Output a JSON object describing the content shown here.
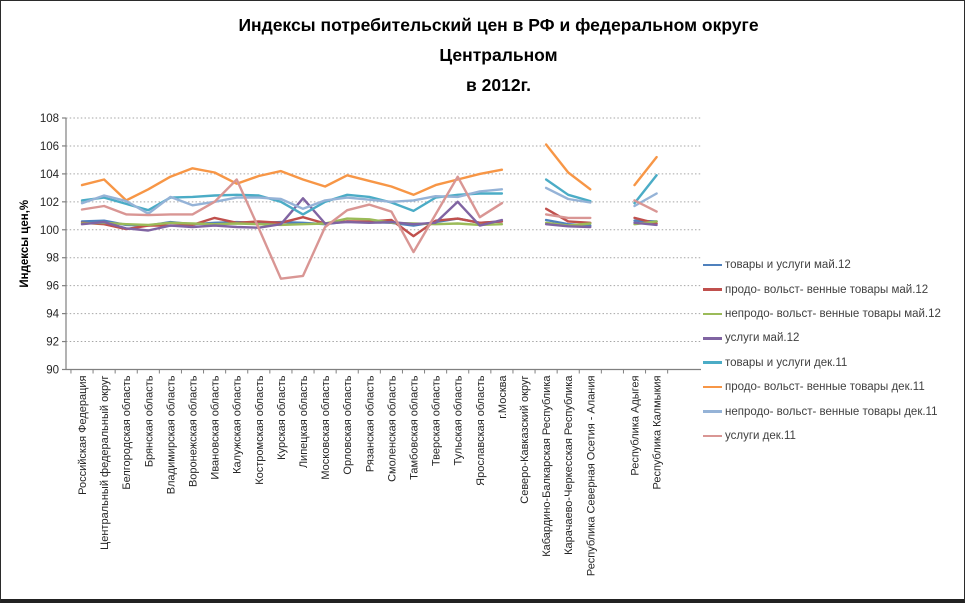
{
  "title": {
    "line1": "Индексы потребительский цен в РФ и федеральном округе",
    "line2": "Центральном",
    "line3": "в 2012г."
  },
  "chart_data": {
    "type": "line",
    "title": "Индексы потребительский цен в РФ и федеральном округе Центральном в 2012г.",
    "ylabel": "Индексы цен,%",
    "ylim": [
      90,
      108
    ],
    "ytick_step": 2,
    "yticks": [
      90,
      92,
      94,
      96,
      98,
      100,
      102,
      104,
      106,
      108
    ],
    "grid": true,
    "grid_color": "#a6a6a6",
    "legend_position": "right",
    "categories": [
      "Российская Федерация",
      "Центральный федеральный округ",
      "Белгородская область",
      "Брянская область",
      "Владимирская область",
      "Воронежская область",
      "Ивановская область",
      "Калужская область",
      "Костромская область",
      "Курская область",
      "Липецкая область",
      "Московская область",
      "Орловская область",
      "Рязанская область",
      "Смоленская область",
      "Тамбовская область",
      "Тверская область",
      "Тульская область",
      "Ярославская область",
      "г.Москва",
      "Северо-Кавказский округ",
      "Кабардино-Балкарская Республика",
      "Карачаево-Черкесская Республика",
      "Республика Северная Осетия - Алания",
      "",
      "Республика Адыгея",
      "Республика Калмыкия"
    ],
    "series": [
      {
        "name": "товары и услуги май.12",
        "color": "#4F81BD",
        "values": [
          100.6,
          100.65,
          100.35,
          100.3,
          100.55,
          100.4,
          100.5,
          100.55,
          100.5,
          100.55,
          100.5,
          100.4,
          100.6,
          100.55,
          100.5,
          100.3,
          100.55,
          100.8,
          100.5,
          100.6,
          null,
          100.7,
          100.4,
          100.3,
          null,
          100.65,
          100.6
        ]
      },
      {
        "name": "продо- вольст- венные  товары   май.12",
        "color": "#C0504D",
        "values": [
          100.5,
          100.4,
          100.05,
          100.3,
          100.3,
          100.35,
          100.85,
          100.5,
          100.6,
          100.5,
          100.9,
          100.45,
          100.6,
          100.6,
          100.7,
          99.55,
          100.65,
          100.8,
          100.5,
          100.6,
          null,
          101.5,
          100.6,
          100.5,
          null,
          100.85,
          100.45
        ]
      },
      {
        "name": "непродо- вольст- венные  товары май.12",
        "color": "#9BBB59",
        "values": [
          100.45,
          100.5,
          100.4,
          100.35,
          100.5,
          100.45,
          100.4,
          100.45,
          100.4,
          100.35,
          100.4,
          100.45,
          100.8,
          100.75,
          100.5,
          100.45,
          100.4,
          100.45,
          100.35,
          100.4,
          null,
          100.5,
          100.3,
          100.45,
          null,
          100.4,
          100.6
        ]
      },
      {
        "name": "услуги  май.12",
        "color": "#8064A2",
        "values": [
          100.4,
          100.55,
          100.1,
          99.95,
          100.3,
          100.2,
          100.3,
          100.2,
          100.15,
          100.4,
          102.25,
          100.45,
          100.55,
          100.5,
          100.55,
          100.4,
          100.5,
          102.0,
          100.3,
          100.7,
          null,
          100.4,
          100.25,
          100.2,
          null,
          100.5,
          100.35
        ]
      },
      {
        "name": "товары и услуги дек.11",
        "color": "#4BACC6",
        "values": [
          102.1,
          102.3,
          101.85,
          101.4,
          102.3,
          102.35,
          102.45,
          102.5,
          102.45,
          102.0,
          101.1,
          102.0,
          102.5,
          102.35,
          101.95,
          101.35,
          102.3,
          102.5,
          102.6,
          102.6,
          null,
          103.6,
          102.5,
          102.05,
          null,
          101.9,
          103.9
        ]
      },
      {
        "name": "продо- вольст- венные  товары   дек.11",
        "color": "#F79646",
        "values": [
          103.2,
          103.6,
          102.1,
          102.9,
          103.8,
          104.4,
          104.1,
          103.3,
          103.85,
          104.2,
          103.6,
          103.1,
          103.9,
          103.5,
          103.1,
          102.5,
          103.2,
          103.6,
          104.0,
          104.3,
          null,
          106.1,
          104.1,
          102.9,
          null,
          103.2,
          105.2
        ]
      },
      {
        "name": "непродо- вольст- венные  товары дек.11",
        "color": "#95B3D7",
        "values": [
          101.9,
          102.45,
          102.05,
          101.15,
          102.35,
          101.75,
          102.0,
          102.3,
          102.3,
          102.2,
          101.5,
          102.1,
          102.3,
          102.15,
          102.0,
          102.1,
          102.4,
          102.35,
          102.75,
          102.9,
          null,
          103.0,
          102.2,
          101.95,
          null,
          101.7,
          102.6
        ]
      },
      {
        "name": "услуги  дек.11",
        "color": "#D99694",
        "values": [
          101.45,
          101.7,
          101.1,
          101.05,
          101.1,
          101.1,
          102.0,
          103.6,
          100.1,
          96.5,
          96.7,
          100.2,
          101.4,
          101.8,
          101.3,
          98.4,
          101.1,
          103.8,
          100.9,
          101.9,
          null,
          101.1,
          100.85,
          100.85,
          null,
          102.1,
          101.3
        ]
      }
    ]
  },
  "legend": {
    "items": [
      {
        "label": "товары и услуги май.12",
        "color": "#4F81BD"
      },
      {
        "label": "продо- вольст- венные  товары   май.12",
        "color": "#C0504D"
      },
      {
        "label": "непродо- вольст- венные  товары май.12",
        "color": "#9BBB59"
      },
      {
        "label": "услуги  май.12",
        "color": "#8064A2"
      },
      {
        "label": "товары и услуги дек.11",
        "color": "#4BACC6"
      },
      {
        "label": "продо- вольст- венные  товары   дек.11",
        "color": "#F79646"
      },
      {
        "label": "непродо- вольст- венные  товары дек.11",
        "color": "#95B3D7"
      },
      {
        "label": "услуги  дек.11",
        "color": "#D99694"
      }
    ]
  }
}
